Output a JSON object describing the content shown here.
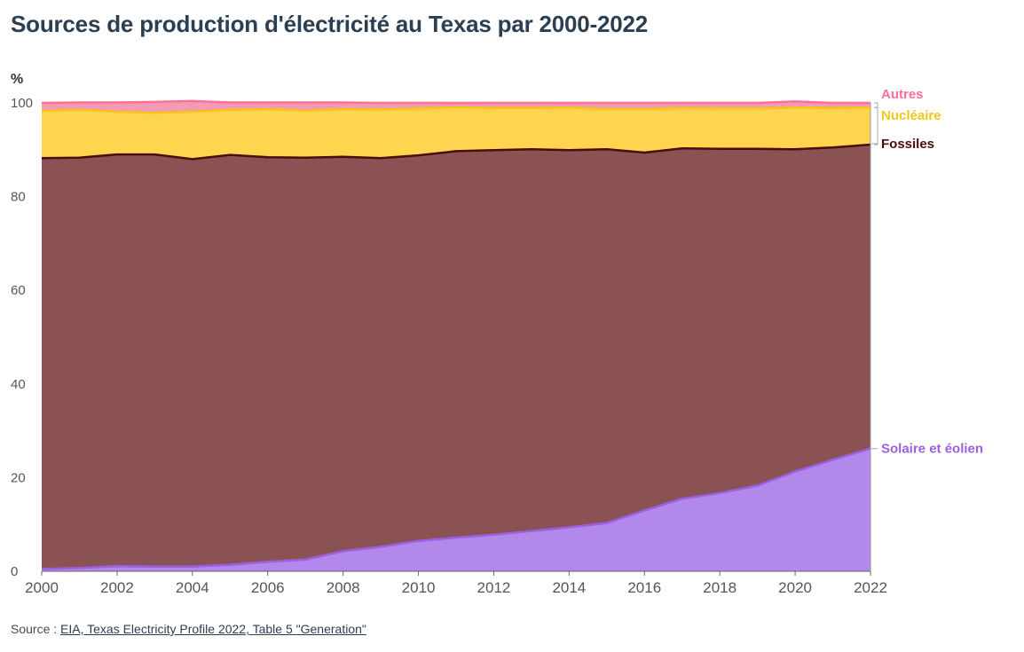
{
  "title": "Sources de production d'électricité au Texas par 2000-2022",
  "source": {
    "prefix": "Source :",
    "link_text": "EIA, Texas Electricity Profile 2022, Table 5 \"Generation\""
  },
  "chart_data": {
    "type": "area",
    "stacked": true,
    "ylabel": "%",
    "xlabel": "",
    "xlim": [
      2000,
      2022
    ],
    "ylim": [
      0,
      100
    ],
    "x_ticks": [
      2000,
      2002,
      2004,
      2006,
      2008,
      2010,
      2012,
      2014,
      2016,
      2018,
      2020,
      2022
    ],
    "y_ticks": [
      0,
      20,
      40,
      60,
      80,
      100
    ],
    "grid": true,
    "legend": "direct labels at right end of each series",
    "x": [
      2000,
      2001,
      2002,
      2003,
      2004,
      2005,
      2006,
      2007,
      2008,
      2009,
      2010,
      2011,
      2012,
      2013,
      2014,
      2015,
      2016,
      2017,
      2018,
      2019,
      2020,
      2021,
      2022
    ],
    "series": [
      {
        "name": "Solaire et éolien",
        "color": "#b388eb",
        "line_color": "#9b5fe0",
        "values": [
          0.5,
          0.7,
          1.1,
          1.0,
          1.0,
          1.4,
          2.0,
          2.5,
          4.3,
          5.2,
          6.5,
          7.2,
          7.8,
          8.6,
          9.4,
          10.3,
          13.0,
          15.5,
          16.7,
          18.3,
          21.3,
          23.8,
          26.2
        ]
      },
      {
        "name": "Fossiles",
        "color": "#8a5252",
        "line_color": "#4a0c0c",
        "values": [
          87.7,
          87.6,
          87.9,
          88.0,
          87.0,
          87.5,
          86.4,
          85.8,
          84.2,
          83.0,
          82.3,
          82.5,
          82.1,
          81.5,
          80.5,
          79.8,
          76.4,
          74.8,
          73.5,
          71.9,
          68.8,
          66.7,
          64.9
        ]
      },
      {
        "name": "Nucléaire",
        "color": "#ffd54f",
        "line_color": "#f5c518",
        "values": [
          10.1,
          10.2,
          9.1,
          8.9,
          10.1,
          9.6,
          10.3,
          10.0,
          10.2,
          10.4,
          10.0,
          9.4,
          9.0,
          8.8,
          9.1,
          8.6,
          9.3,
          8.6,
          8.6,
          8.6,
          8.9,
          8.4,
          7.9
        ]
      },
      {
        "name": "Autres",
        "color": "#f49ab5",
        "line_color": "#ff6f96",
        "values": [
          1.7,
          1.6,
          2.0,
          2.3,
          2.3,
          1.6,
          1.4,
          1.8,
          1.4,
          1.4,
          1.2,
          0.9,
          1.1,
          1.1,
          1.0,
          1.3,
          1.3,
          1.1,
          1.2,
          1.2,
          1.3,
          1.1,
          1.0
        ]
      }
    ],
    "end_labels": [
      "Autres",
      "Nucléaire",
      "Fossiles",
      "Solaire et éolien"
    ]
  }
}
